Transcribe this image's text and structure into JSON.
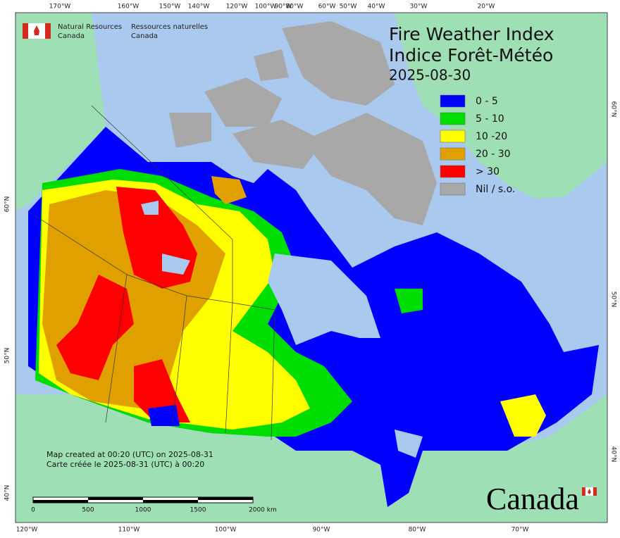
{
  "header": {
    "org_en": [
      "Natural Resources",
      "Canada"
    ],
    "org_fr": [
      "Ressources naturelles",
      "Canada"
    ]
  },
  "title": [
    "Fire Weather Index",
    "Indice Forêt-Météo"
  ],
  "date": "2025-08-30",
  "legend": [
    {
      "label": "0 - 5",
      "color": "#0000ff"
    },
    {
      "label": "5 - 10",
      "color": "#00dd00"
    },
    {
      "label": "10 -20",
      "color": "#ffff00"
    },
    {
      "label": "20 - 30",
      "color": "#e0a000"
    },
    {
      "label": "> 30",
      "color": "#ff0000"
    },
    {
      "label": "Nil / s.o.",
      "color": "#a8a8a8"
    }
  ],
  "top_labels": [
    "170°W",
    "160°W",
    "150°W",
    "140°W",
    "120°W",
    "100°W",
    "90°W",
    "80°W",
    "60°W",
    "50°W",
    "40°W",
    "30°W",
    "20°W"
  ],
  "bottom_labels": [
    "120°W",
    "110°W",
    "100°W",
    "90°W",
    "80°W",
    "70°W"
  ],
  "left_labels": [
    "60°N",
    "50°N",
    "40°N"
  ],
  "right_labels": [
    "60°N",
    "50°N",
    "40°N"
  ],
  "credits": [
    "Map created at 00:20 (UTC) on 2025-08-31",
    "Carte créée le 2025-08-31 (UTC) à 00:20"
  ],
  "scale_bar": [
    "0",
    "500",
    "1000",
    "1500",
    "2000 km"
  ],
  "wordmark": "Canada"
}
